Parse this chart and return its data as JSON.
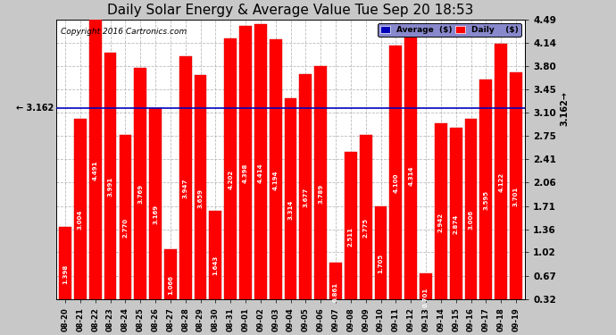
{
  "title": "Daily Solar Energy & Average Value Tue Sep 20 18:53",
  "copyright": "Copyright 2016 Cartronics.com",
  "categories": [
    "08-20",
    "08-21",
    "08-22",
    "08-23",
    "08-24",
    "08-25",
    "08-26",
    "08-27",
    "08-28",
    "08-29",
    "08-30",
    "08-31",
    "09-01",
    "09-02",
    "09-03",
    "09-04",
    "09-05",
    "09-06",
    "09-07",
    "09-08",
    "09-09",
    "09-10",
    "09-11",
    "09-12",
    "09-13",
    "09-14",
    "09-15",
    "09-16",
    "09-17",
    "09-18",
    "09-19"
  ],
  "values": [
    1.398,
    3.004,
    4.491,
    3.991,
    2.77,
    3.769,
    3.169,
    1.066,
    3.947,
    3.659,
    1.643,
    4.202,
    4.398,
    4.414,
    4.194,
    3.314,
    3.677,
    3.789,
    0.861,
    2.511,
    2.775,
    1.705,
    4.1,
    4.314,
    0.701,
    2.942,
    2.874,
    3.006,
    3.595,
    4.122,
    3.701
  ],
  "average": 3.162,
  "bar_color": "#ff0000",
  "average_line_color": "#0000bb",
  "background_color": "#c8c8c8",
  "plot_bg_color": "#ffffff",
  "grid_color": "#aaaaaa",
  "ylim": [
    0.32,
    4.49
  ],
  "yticks": [
    0.32,
    0.67,
    1.02,
    1.36,
    1.71,
    2.06,
    2.41,
    2.75,
    3.1,
    3.45,
    3.8,
    4.14,
    4.49
  ],
  "title_fontsize": 11,
  "legend_avg_color": "#0000bb",
  "legend_daily_color": "#ff0000"
}
